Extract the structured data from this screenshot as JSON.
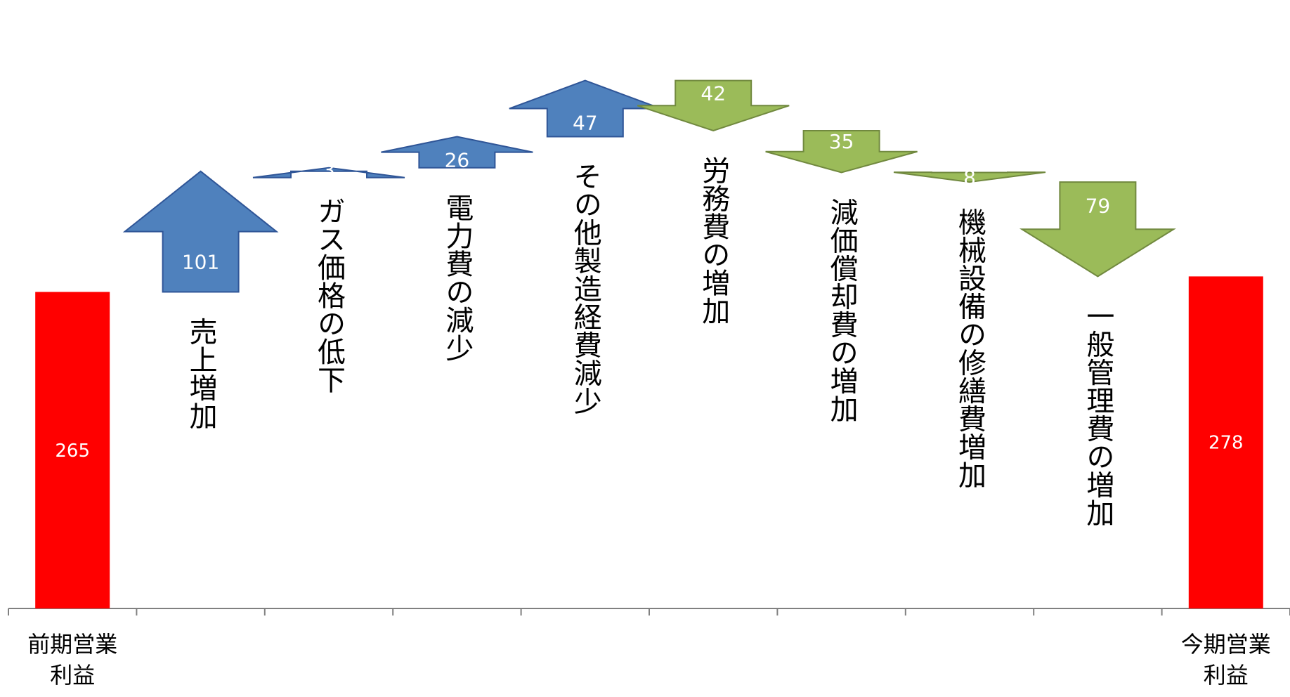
{
  "chart_data": {
    "type": "bar",
    "variant": "waterfall-arrows",
    "ylim": [
      0,
      480
    ],
    "colors": {
      "endpoint": "#ff0000",
      "increase": "#4f81bd",
      "increase_stroke": "#2f5597",
      "decrease": "#9bbb59",
      "decrease_stroke": "#71893f",
      "axis": "#808080"
    },
    "start": {
      "label_lines": [
        "前期営業",
        "利益"
      ],
      "value": 265,
      "display": "265"
    },
    "end": {
      "label_lines": [
        "今期営業",
        "利益"
      ],
      "value": 278,
      "display": "278"
    },
    "steps": [
      {
        "label": "売上増加",
        "direction": "up",
        "value": 101,
        "display": "101"
      },
      {
        "label": "ガス価格の低下",
        "direction": "up",
        "value": 3,
        "display": "3"
      },
      {
        "label": "電力費の減少",
        "direction": "up",
        "value": 26,
        "display": "26"
      },
      {
        "label": "その他製造経費減少",
        "direction": "up",
        "value": 47,
        "display": "47"
      },
      {
        "label": "労務費の増加",
        "direction": "down",
        "value": 42,
        "display": "42"
      },
      {
        "label": "減価償却費の増加",
        "direction": "down",
        "value": 35,
        "display": "35"
      },
      {
        "label": "機械設備の修繕費増加",
        "direction": "down",
        "value": 8,
        "display": "8"
      },
      {
        "label": "一般管理費の増加",
        "direction": "down",
        "value": 79,
        "display": "79"
      }
    ]
  }
}
